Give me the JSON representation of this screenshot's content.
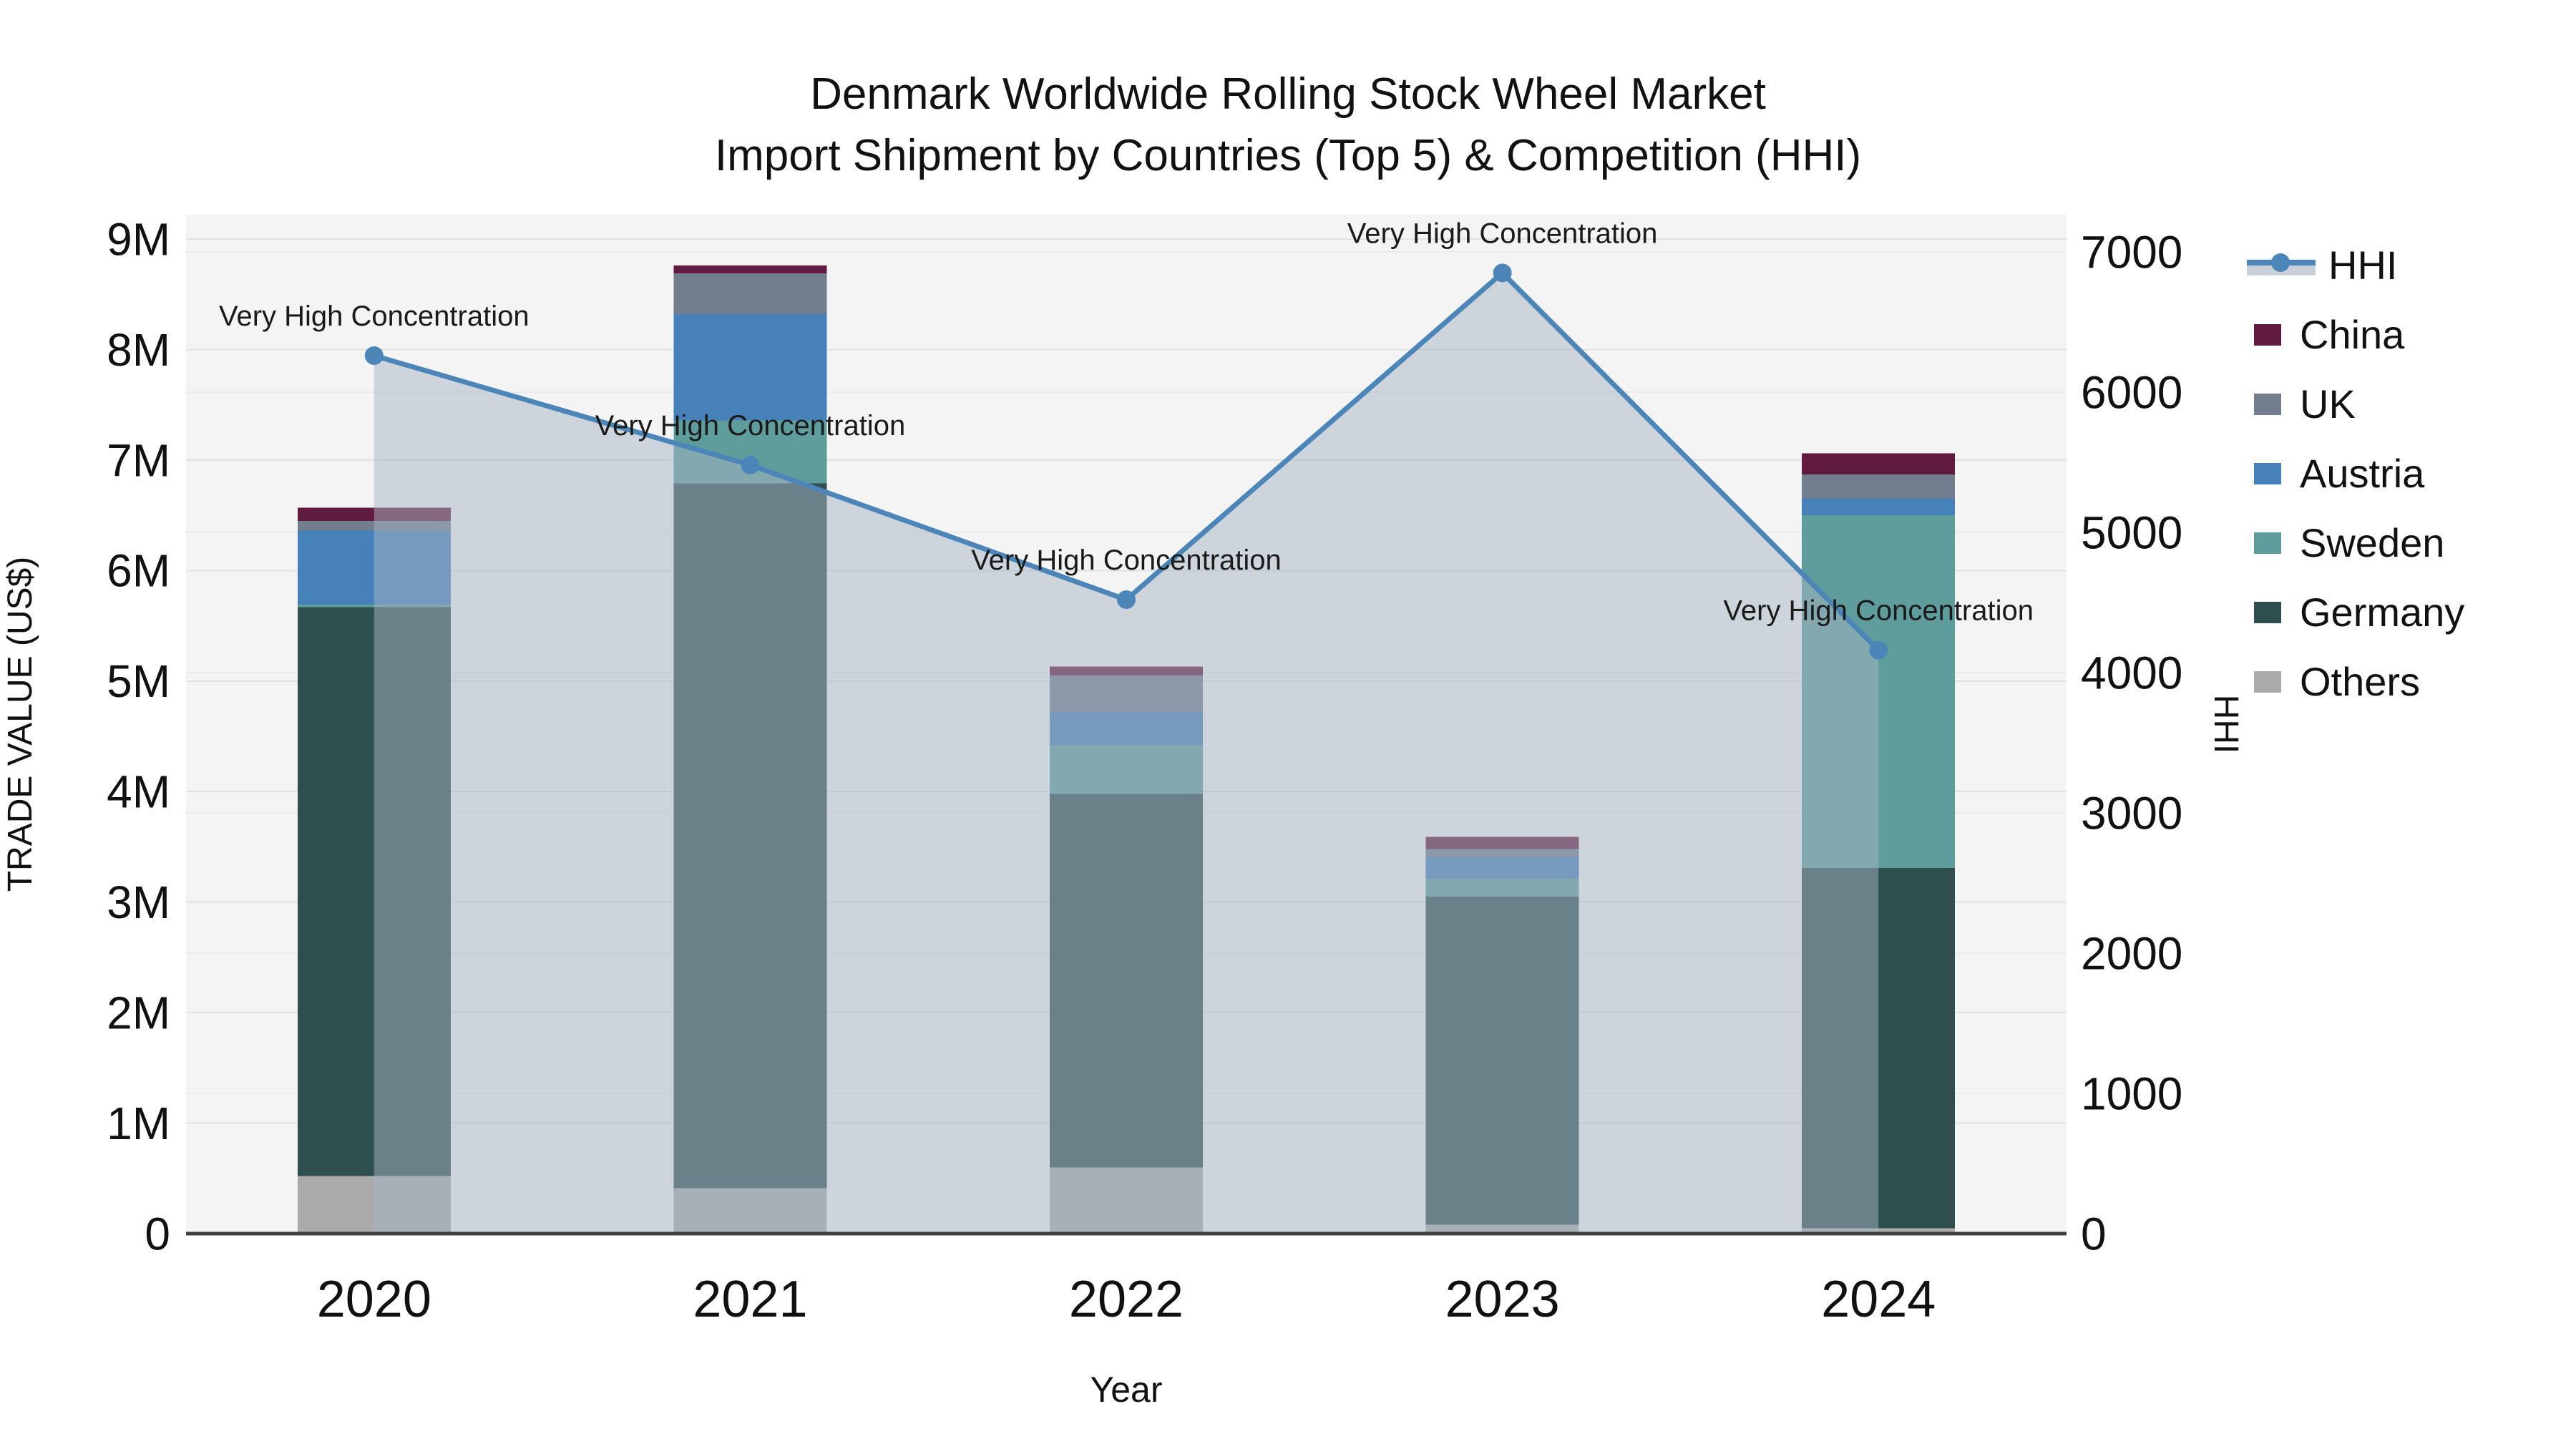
{
  "title": {
    "line1": "Denmark Worldwide Rolling Stock Wheel Market",
    "line2": "Import Shipment by Countries (Top 5) & Competition (HHI)"
  },
  "axes": {
    "left": {
      "title": "TRADE VALUE (US$)",
      "tick_labels": [
        "0",
        "1M",
        "2M",
        "3M",
        "4M",
        "5M",
        "6M",
        "7M",
        "8M",
        "9M"
      ]
    },
    "right": {
      "title": "HHI",
      "tick_labels": [
        "0",
        "1000",
        "2000",
        "3000",
        "4000",
        "5000",
        "6000",
        "7000"
      ]
    },
    "x": {
      "title": "Year"
    }
  },
  "legend": {
    "items": [
      {
        "label": "HHI",
        "type": "line",
        "color": "#4c86b8",
        "area_color": "#c9cfd9"
      },
      {
        "label": "China",
        "type": "swatch",
        "color": "#621b40"
      },
      {
        "label": "UK",
        "type": "swatch",
        "color": "#727e8d"
      },
      {
        "label": "Austria",
        "type": "swatch",
        "color": "#4681ba"
      },
      {
        "label": "Sweden",
        "type": "swatch",
        "color": "#5f9d9c"
      },
      {
        "label": "Germany",
        "type": "swatch",
        "color": "#2f4e4e"
      },
      {
        "label": "Others",
        "type": "swatch",
        "color": "#ababab"
      }
    ]
  },
  "chart_data": {
    "type": "bar+line",
    "title": "Denmark Worldwide Rolling Stock Wheel Market — Import Shipment by Countries (Top 5) & Competition (HHI)",
    "categories": [
      "2020",
      "2021",
      "2022",
      "2023",
      "2024"
    ],
    "xlabel": "Year",
    "bar_axis": {
      "label": "TRADE VALUE (US$)",
      "unit": "million US$",
      "range": [
        0,
        9.22
      ],
      "tick_step": 1
    },
    "line_axis": {
      "label": "HHI",
      "range": [
        0,
        7265
      ],
      "tick_step": 1000
    },
    "stack_order_note": "series listed bottom-to-top of the stacked bars",
    "series": [
      {
        "name": "Others",
        "color": "#ababab",
        "values": [
          0.52,
          0.41,
          0.6,
          0.08,
          0.05
        ]
      },
      {
        "name": "Germany",
        "color": "#2f4e4e",
        "values": [
          5.15,
          6.38,
          3.38,
          2.97,
          3.26
        ]
      },
      {
        "name": "Sweden",
        "color": "#5f9d9c",
        "values": [
          0.02,
          0.57,
          0.44,
          0.16,
          3.19
        ]
      },
      {
        "name": "Austria",
        "color": "#4681ba",
        "values": [
          0.67,
          0.96,
          0.3,
          0.2,
          0.15
        ]
      },
      {
        "name": "UK",
        "color": "#727e8d",
        "values": [
          0.09,
          0.37,
          0.33,
          0.07,
          0.22
        ]
      },
      {
        "name": "China",
        "color": "#621b40",
        "values": [
          0.12,
          0.07,
          0.08,
          0.11,
          0.19
        ]
      }
    ],
    "bar_totals": [
      6.57,
      8.76,
      5.13,
      3.59,
      7.06
    ],
    "line_series": {
      "name": "HHI",
      "color": "#4c86b8",
      "area_fill": "rgba(167,179,196,0.5)",
      "values": [
        6260,
        5480,
        4520,
        6850,
        4160
      ]
    },
    "annotations": [
      {
        "x": "2020",
        "text": "Very High Concentration"
      },
      {
        "x": "2021",
        "text": "Very High Concentration"
      },
      {
        "x": "2022",
        "text": "Very High Concentration"
      },
      {
        "x": "2023",
        "text": "Very High Concentration"
      },
      {
        "x": "2024",
        "text": "Very High Concentration"
      }
    ],
    "grid": "horizontal gridlines for both axes",
    "legend_position": "right"
  }
}
